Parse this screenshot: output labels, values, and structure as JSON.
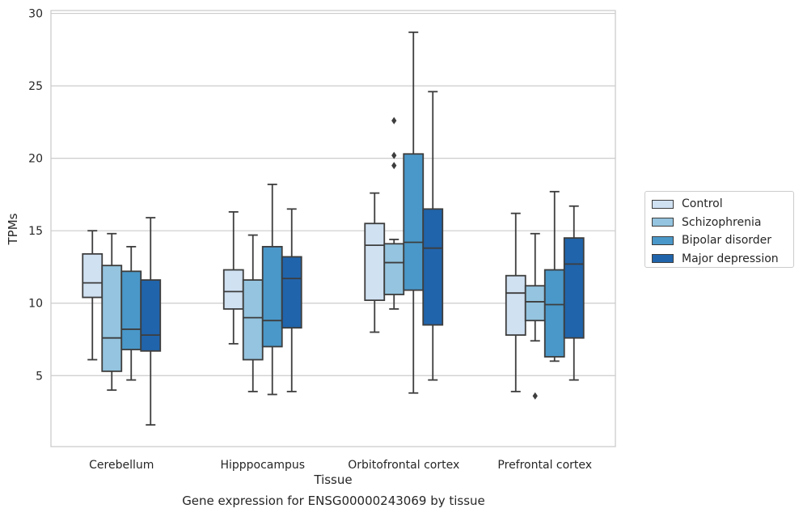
{
  "chart_data": {
    "type": "box",
    "title": "Gene expression for ENSG00000243069 by tissue",
    "xlabel": "Tissue",
    "ylabel": "TPMs",
    "ylim": [
      0.1,
      30.2
    ],
    "yticks": [
      5,
      10,
      15,
      20,
      25,
      30
    ],
    "grid": true,
    "legend_position": "right",
    "categories": [
      "Cerebellum",
      "Hipppocampus",
      "Orbitofrontal cortex",
      "Prefrontal cortex"
    ],
    "series": [
      {
        "name": "Control",
        "color": "#d0e1f2",
        "boxes": [
          {
            "whisker_low": 6.1,
            "q1": 10.4,
            "median": 11.4,
            "q3": 13.4,
            "whisker_high": 15.0,
            "outliers": []
          },
          {
            "whisker_low": 7.2,
            "q1": 9.6,
            "median": 10.8,
            "q3": 12.3,
            "whisker_high": 16.3,
            "outliers": []
          },
          {
            "whisker_low": 8.0,
            "q1": 10.2,
            "median": 14.0,
            "q3": 15.5,
            "whisker_high": 17.6,
            "outliers": []
          },
          {
            "whisker_low": 3.9,
            "q1": 7.8,
            "median": 10.7,
            "q3": 11.9,
            "whisker_high": 16.2,
            "outliers": []
          }
        ]
      },
      {
        "name": "Schizophrenia",
        "color": "#94c4df",
        "boxes": [
          {
            "whisker_low": 4.0,
            "q1": 5.3,
            "median": 7.6,
            "q3": 12.6,
            "whisker_high": 14.8,
            "outliers": []
          },
          {
            "whisker_low": 3.9,
            "q1": 6.1,
            "median": 9.0,
            "q3": 11.6,
            "whisker_high": 14.7,
            "outliers": []
          },
          {
            "whisker_low": 9.6,
            "q1": 10.6,
            "median": 12.8,
            "q3": 14.1,
            "whisker_high": 14.4,
            "outliers": [
              19.5,
              20.2,
              22.6
            ]
          },
          {
            "whisker_low": 7.4,
            "q1": 8.8,
            "median": 10.1,
            "q3": 11.2,
            "whisker_high": 14.8,
            "outliers": [
              3.6
            ]
          }
        ]
      },
      {
        "name": "Bipolar disorder",
        "color": "#4a98c9",
        "boxes": [
          {
            "whisker_low": 4.7,
            "q1": 6.8,
            "median": 8.2,
            "q3": 12.2,
            "whisker_high": 13.9,
            "outliers": []
          },
          {
            "whisker_low": 3.7,
            "q1": 7.0,
            "median": 8.8,
            "q3": 13.9,
            "whisker_high": 18.2,
            "outliers": []
          },
          {
            "whisker_low": 3.8,
            "q1": 10.9,
            "median": 14.2,
            "q3": 20.3,
            "whisker_high": 28.7,
            "outliers": []
          },
          {
            "whisker_low": 6.0,
            "q1": 6.3,
            "median": 9.9,
            "q3": 12.3,
            "whisker_high": 17.7,
            "outliers": []
          }
        ]
      },
      {
        "name": "Major depression",
        "color": "#2064ab",
        "boxes": [
          {
            "whisker_low": 1.6,
            "q1": 6.7,
            "median": 7.8,
            "q3": 11.6,
            "whisker_high": 15.9,
            "outliers": []
          },
          {
            "whisker_low": 3.9,
            "q1": 8.3,
            "median": 11.7,
            "q3": 13.2,
            "whisker_high": 16.5,
            "outliers": []
          },
          {
            "whisker_low": 4.7,
            "q1": 8.5,
            "median": 13.8,
            "q3": 16.5,
            "whisker_high": 24.6,
            "outliers": []
          },
          {
            "whisker_low": 4.7,
            "q1": 7.6,
            "median": 12.7,
            "q3": 14.5,
            "whisker_high": 16.7,
            "outliers": []
          }
        ]
      }
    ]
  }
}
